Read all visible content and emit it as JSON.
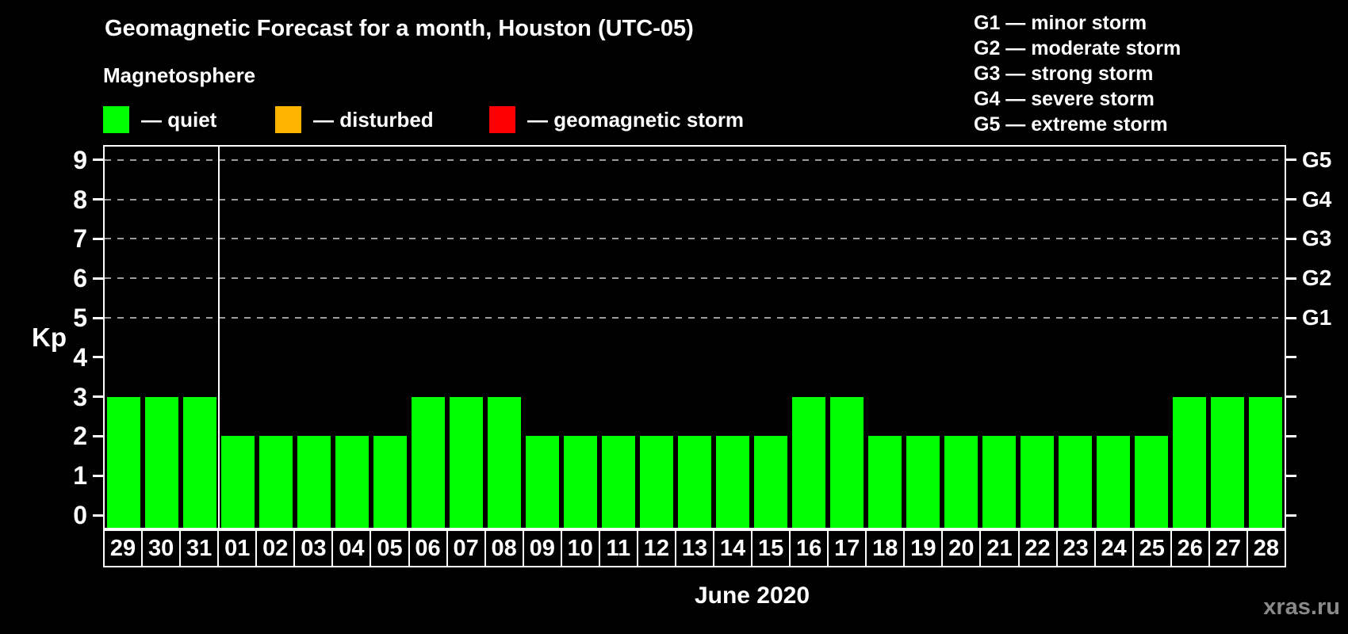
{
  "title": "Geomagnetic Forecast for a month, Houston (UTC-05)",
  "subtitle": "Magnetosphere",
  "legend": {
    "items": [
      {
        "label": "— quiet",
        "status": "quiet"
      },
      {
        "label": "— disturbed",
        "status": "disturbed"
      },
      {
        "label": "— geomagnetic storm",
        "status": "storm"
      }
    ]
  },
  "g_legend": {
    "lines": [
      "G1 — minor storm",
      "G2 — moderate storm",
      "G3 — strong storm",
      "G4 — severe storm",
      "G5 — extreme storm"
    ]
  },
  "watermark": "xras.ru",
  "colors": {
    "background": "#000000",
    "text": "#ffffff",
    "grid": "#9a9a9a",
    "watermark": "#8a8a8a",
    "quiet": "#00ff00",
    "disturbed": "#ffb400",
    "storm": "#ff0000"
  },
  "chart_data": {
    "type": "bar",
    "title": "Geomagnetic Forecast for a month, Houston (UTC-05)",
    "xlabel": "June 2020",
    "ylabel": "Kp",
    "ylim": [
      0,
      9
    ],
    "y_ticks": [
      0,
      1,
      2,
      3,
      4,
      5,
      6,
      7,
      8,
      9
    ],
    "gridlines_at_kp": [
      5,
      6,
      7,
      8,
      9
    ],
    "grid": "dashed",
    "right_axis_labels": [
      {
        "kp": 5,
        "label": "G1"
      },
      {
        "kp": 6,
        "label": "G2"
      },
      {
        "kp": 7,
        "label": "G3"
      },
      {
        "kp": 8,
        "label": "G4"
      },
      {
        "kp": 9,
        "label": "G5"
      }
    ],
    "month_separator_after_index": 2,
    "categories": [
      "29",
      "30",
      "31",
      "01",
      "02",
      "03",
      "04",
      "05",
      "06",
      "07",
      "08",
      "09",
      "10",
      "11",
      "12",
      "13",
      "14",
      "15",
      "16",
      "17",
      "18",
      "19",
      "20",
      "21",
      "22",
      "23",
      "24",
      "25",
      "26",
      "27",
      "28"
    ],
    "values": [
      3,
      3,
      3,
      2,
      2,
      2,
      2,
      2,
      3,
      3,
      3,
      2,
      2,
      2,
      2,
      2,
      2,
      2,
      3,
      3,
      2,
      2,
      2,
      2,
      2,
      2,
      2,
      2,
      3,
      3,
      3
    ],
    "statuses": [
      "quiet",
      "quiet",
      "quiet",
      "quiet",
      "quiet",
      "quiet",
      "quiet",
      "quiet",
      "quiet",
      "quiet",
      "quiet",
      "quiet",
      "quiet",
      "quiet",
      "quiet",
      "quiet",
      "quiet",
      "quiet",
      "quiet",
      "quiet",
      "quiet",
      "quiet",
      "quiet",
      "quiet",
      "quiet",
      "quiet",
      "quiet",
      "quiet",
      "quiet",
      "quiet",
      "quiet"
    ]
  }
}
